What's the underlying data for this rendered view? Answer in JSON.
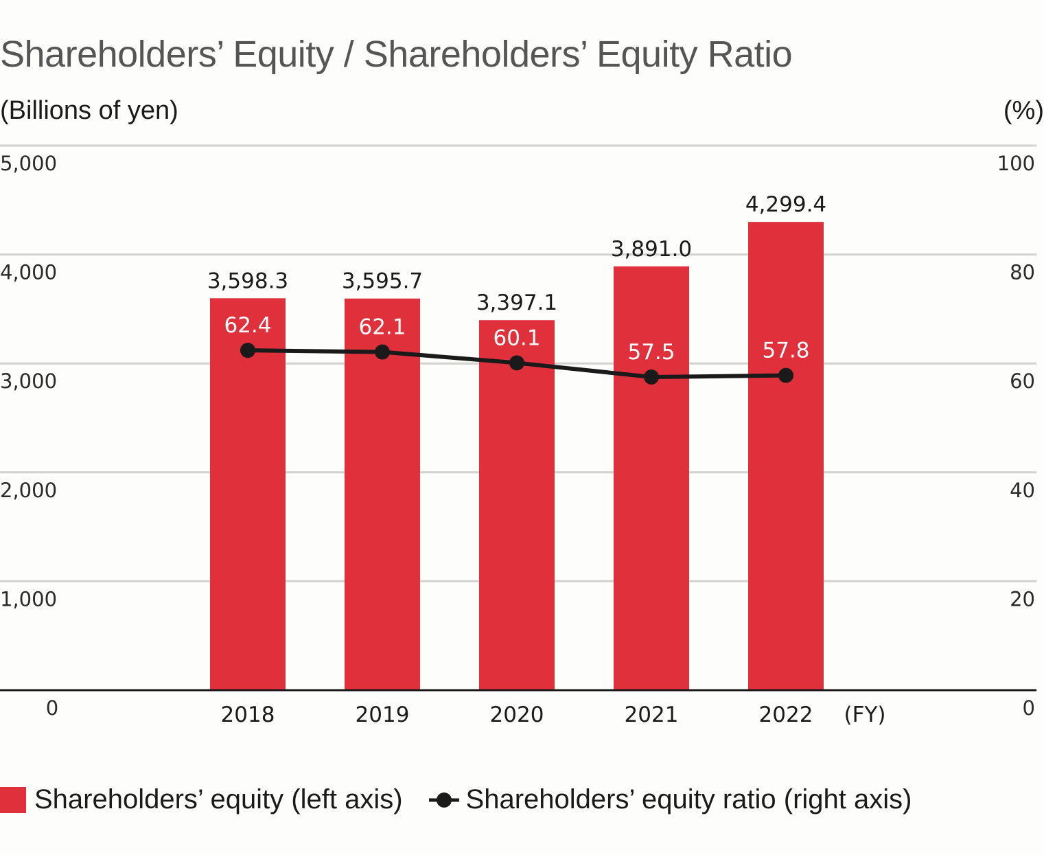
{
  "chart_data": {
    "type": "bar",
    "title": "Shareholders’ Equity / Shareholders’ Equity Ratio",
    "left_axis_label": "(Billions of yen)",
    "right_axis_label": "(%)",
    "xlabel": "(FY)",
    "categories": [
      "2018",
      "2019",
      "2020",
      "2021",
      "2022"
    ],
    "left_ylim": [
      0,
      5000
    ],
    "right_ylim": [
      0,
      100
    ],
    "left_ticks": [
      "0",
      "1,000",
      "2,000",
      "3,000",
      "4,000",
      "5,000"
    ],
    "left_tick_values": [
      0,
      1000,
      2000,
      3000,
      4000,
      5000
    ],
    "right_ticks": [
      "0",
      "20",
      "40",
      "60",
      "80",
      "100"
    ],
    "right_tick_values": [
      0,
      20,
      40,
      60,
      80,
      100
    ],
    "grid": true,
    "legend_position": "bottom-left",
    "series": [
      {
        "name": "Shareholders’ equity (left axis)",
        "type": "bar",
        "axis": "left",
        "color": "#e0303c",
        "values": [
          3598.3,
          3595.7,
          3397.1,
          3891.0,
          4299.4
        ],
        "labels": [
          "3,598.3",
          "3,595.7",
          "3,397.1",
          "3,891.0",
          "4,299.4"
        ]
      },
      {
        "name": "Shareholders’ equity ratio (right axis)",
        "type": "line",
        "axis": "right",
        "color": "#1a1a1a",
        "values": [
          62.4,
          62.1,
          60.1,
          57.5,
          57.8
        ],
        "labels": [
          "62.4",
          "62.1",
          "60.1",
          "57.5",
          "57.8"
        ]
      }
    ]
  },
  "legend": {
    "items": [
      {
        "label": "Shareholders’ equity (left axis)",
        "icon": "red-square-icon",
        "color": "#e0303c"
      },
      {
        "label": "Shareholders’ equity ratio (right axis)",
        "icon": "line-dot-icon",
        "color": "#1a1a1a"
      }
    ]
  }
}
